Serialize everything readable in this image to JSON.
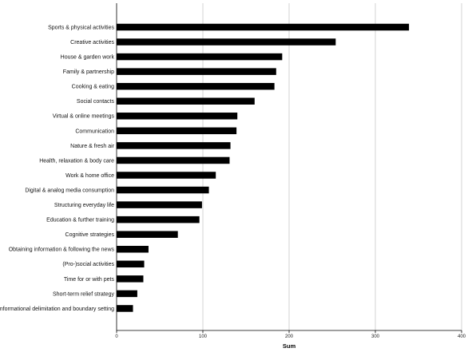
{
  "chart_data": {
    "type": "bar",
    "orientation": "horizontal",
    "title": "",
    "xlabel": "Sum",
    "ylabel": "",
    "xlim": [
      0,
      400
    ],
    "xticks": [
      0,
      100,
      200,
      300,
      400
    ],
    "grid": true,
    "legend": "none",
    "bar_color": "#000000",
    "categories": [
      "Sports & physical activities",
      "Creative activities",
      "House & garden work",
      "Family & partnership",
      "Cooking & eating",
      "Social contacts",
      "Virtual & online meetings",
      "Communication",
      "Nature & fresh air",
      "Health, relaxation & body care",
      "Work & home office",
      "Digital & analog media consumption",
      "Structuring everyday life",
      "Education & further training",
      "Cognitive strategies",
      "Obtaining information & following the news",
      "(Pro-)social activities",
      "Time for or with pets",
      "Short-term relief strategy",
      "Informational delimitation and boundary setting"
    ],
    "values": [
      339,
      254,
      192,
      185,
      183,
      160,
      140,
      139,
      132,
      131,
      115,
      107,
      99,
      96,
      71,
      37,
      32,
      31,
      24,
      19
    ]
  }
}
